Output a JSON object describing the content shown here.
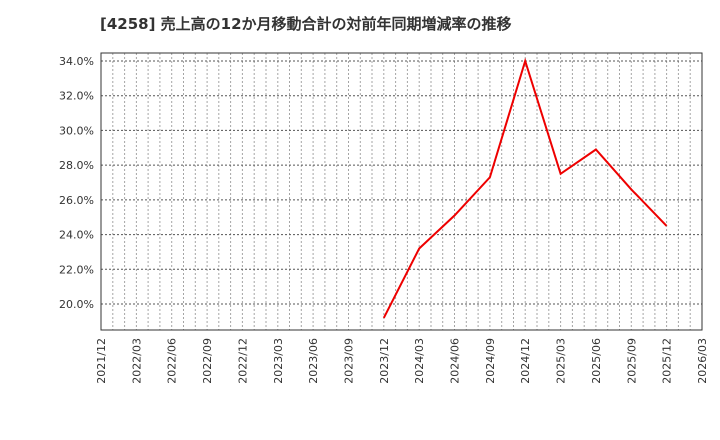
{
  "title": "[4258]  売上高の12か月移動合計の対前年同期増減率の推移",
  "colors": {
    "line": "#ee0000",
    "grid": "#888888",
    "axis": "#333333",
    "background": "#ffffff"
  },
  "chart_data": {
    "type": "line",
    "title": "[4258]  売上高の12か月移動合計の対前年同期増減率の推移",
    "xlabel": "",
    "ylabel": "",
    "ylim": [
      18.5,
      34.5
    ],
    "yticks": [
      "20.0%",
      "22.0%",
      "24.0%",
      "26.0%",
      "28.0%",
      "30.0%",
      "32.0%",
      "34.0%"
    ],
    "ytick_values": [
      20,
      22,
      24,
      26,
      28,
      30,
      32,
      34
    ],
    "xticks": [
      "2021/12",
      "2022/03",
      "2022/06",
      "2022/09",
      "2022/12",
      "2023/03",
      "2023/06",
      "2023/09",
      "2023/12",
      "2024/03",
      "2024/06",
      "2024/09",
      "2024/12",
      "2025/03",
      "2025/06",
      "2025/09",
      "2025/12",
      "2026/03"
    ],
    "grid": true,
    "legend": "none",
    "series": [
      {
        "name": "対前年同期増減率",
        "x": [
          "2023/12",
          "2024/03",
          "2024/06",
          "2024/09",
          "2024/12",
          "2025/03",
          "2025/06",
          "2025/09",
          "2025/12"
        ],
        "values": [
          19.2,
          23.2,
          25.1,
          27.3,
          34.0,
          27.5,
          28.9,
          26.6,
          24.5
        ]
      }
    ]
  }
}
